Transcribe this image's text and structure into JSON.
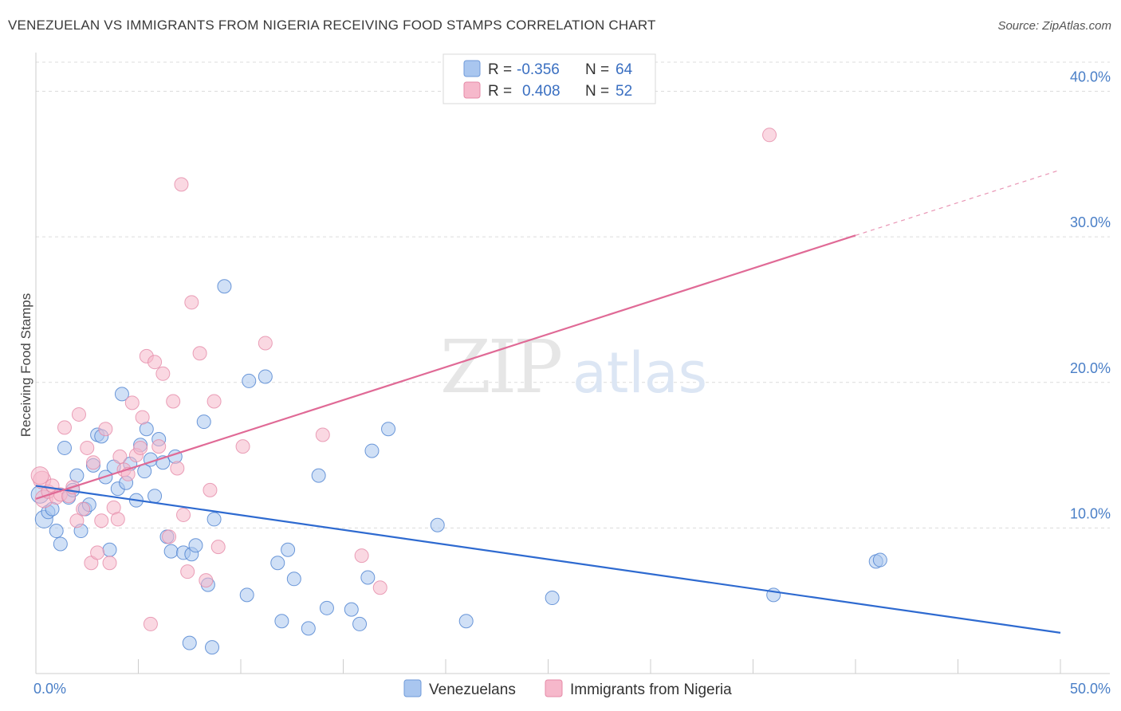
{
  "title": "VENEZUELAN VS IMMIGRANTS FROM NIGERIA RECEIVING FOOD STAMPS CORRELATION CHART",
  "source": "Source: ZipAtlas.com",
  "watermark": {
    "zip": "ZIP",
    "atlas": "atlas"
  },
  "legend": {
    "rows": [
      {
        "r_label": "R =",
        "r_value": "-0.356",
        "n_label": "N =",
        "n_value": "64",
        "color": "#a9c6ef"
      },
      {
        "r_label": "R =",
        "r_value": "0.408",
        "n_label": "N =",
        "n_value": "52",
        "color": "#f6b8cb"
      }
    ]
  },
  "bottom_legend": [
    {
      "label": "Venezuelans",
      "color": "#a9c6ef"
    },
    {
      "label": "Immigrants from Nigeria",
      "color": "#f6b8cb"
    }
  ],
  "chart_data": {
    "type": "scatter",
    "xlabel": "",
    "ylabel": "Receiving Food Stamps",
    "xlim": [
      0,
      50
    ],
    "ylim": [
      0,
      40
    ],
    "x_tick_labels": [
      {
        "value": 0,
        "label": "0.0%"
      },
      {
        "value": 50,
        "label": "50.0%"
      }
    ],
    "y_tick_labels": [
      {
        "value": 10,
        "label": "10.0%"
      },
      {
        "value": 20,
        "label": "20.0%"
      },
      {
        "value": 30,
        "label": "30.0%"
      },
      {
        "value": 40,
        "label": "40.0%"
      }
    ],
    "grid": true,
    "legend_position": "top-center",
    "series": [
      {
        "name": "Venezuelans",
        "color": "#4a7fd0",
        "fill": "#a9c6ef",
        "trend": {
          "x": [
            0,
            50
          ],
          "y": [
            12.9,
            2.8
          ],
          "color": "#2e6ad0"
        },
        "points": [
          [
            0.2,
            12.3
          ],
          [
            0.4,
            10.6
          ],
          [
            0.6,
            11.1
          ],
          [
            0.8,
            11.3
          ],
          [
            1.0,
            9.8
          ],
          [
            1.2,
            8.9
          ],
          [
            1.4,
            15.5
          ],
          [
            1.6,
            12.1
          ],
          [
            1.8,
            12.6
          ],
          [
            2.0,
            13.6
          ],
          [
            2.2,
            9.8
          ],
          [
            2.4,
            11.3
          ],
          [
            2.6,
            11.6
          ],
          [
            2.8,
            14.3
          ],
          [
            3.0,
            16.4
          ],
          [
            3.2,
            16.3
          ],
          [
            3.4,
            13.5
          ],
          [
            3.6,
            8.5
          ],
          [
            3.8,
            14.2
          ],
          [
            4.0,
            12.7
          ],
          [
            4.2,
            19.2
          ],
          [
            4.4,
            13.1
          ],
          [
            4.6,
            14.4
          ],
          [
            4.9,
            11.9
          ],
          [
            5.1,
            15.7
          ],
          [
            5.3,
            13.9
          ],
          [
            5.4,
            16.8
          ],
          [
            5.6,
            14.7
          ],
          [
            5.8,
            12.2
          ],
          [
            6.0,
            16.1
          ],
          [
            6.2,
            14.5
          ],
          [
            6.4,
            9.4
          ],
          [
            6.6,
            8.4
          ],
          [
            6.8,
            14.9
          ],
          [
            7.2,
            8.3
          ],
          [
            7.5,
            2.1
          ],
          [
            7.6,
            8.2
          ],
          [
            7.8,
            8.8
          ],
          [
            8.2,
            17.3
          ],
          [
            8.4,
            6.1
          ],
          [
            8.6,
            1.8
          ],
          [
            8.7,
            10.6
          ],
          [
            9.2,
            26.6
          ],
          [
            10.3,
            5.4
          ],
          [
            10.4,
            20.1
          ],
          [
            11.2,
            20.4
          ],
          [
            11.8,
            7.6
          ],
          [
            12.0,
            3.6
          ],
          [
            12.3,
            8.5
          ],
          [
            12.6,
            6.5
          ],
          [
            13.3,
            3.1
          ],
          [
            13.8,
            13.6
          ],
          [
            14.2,
            4.5
          ],
          [
            15.4,
            4.4
          ],
          [
            15.8,
            3.4
          ],
          [
            16.2,
            6.6
          ],
          [
            16.4,
            15.3
          ],
          [
            17.2,
            16.8
          ],
          [
            19.6,
            10.2
          ],
          [
            21.0,
            3.6
          ],
          [
            25.2,
            5.2
          ],
          [
            36.0,
            5.4
          ],
          [
            41.0,
            7.7
          ],
          [
            41.2,
            7.8
          ]
        ]
      },
      {
        "name": "Immigrants from Nigeria",
        "color": "#e58aa7",
        "fill": "#f6b8cb",
        "trend": {
          "x": [
            0,
            40
          ],
          "y": [
            12.0,
            30.1
          ],
          "dashed_to": {
            "x": 50,
            "y": 34.6
          },
          "color": "#e06a96"
        },
        "points": [
          [
            0.3,
            13.3
          ],
          [
            0.4,
            12.0
          ],
          [
            0.6,
            12.5
          ],
          [
            0.8,
            12.9
          ],
          [
            1.0,
            12.1
          ],
          [
            1.2,
            12.3
          ],
          [
            1.4,
            16.9
          ],
          [
            1.6,
            12.2
          ],
          [
            1.8,
            12.8
          ],
          [
            2.0,
            10.5
          ],
          [
            2.1,
            17.8
          ],
          [
            2.3,
            11.3
          ],
          [
            2.5,
            15.5
          ],
          [
            2.7,
            7.6
          ],
          [
            2.8,
            14.5
          ],
          [
            3.0,
            8.3
          ],
          [
            3.2,
            10.5
          ],
          [
            3.4,
            16.8
          ],
          [
            3.6,
            7.6
          ],
          [
            3.8,
            11.4
          ],
          [
            4.0,
            10.6
          ],
          [
            4.1,
            14.9
          ],
          [
            4.3,
            14.0
          ],
          [
            4.5,
            13.7
          ],
          [
            4.7,
            18.6
          ],
          [
            4.9,
            15.0
          ],
          [
            5.1,
            15.5
          ],
          [
            5.2,
            17.6
          ],
          [
            5.4,
            21.8
          ],
          [
            5.6,
            3.4
          ],
          [
            5.8,
            21.4
          ],
          [
            6.0,
            15.6
          ],
          [
            6.2,
            20.6
          ],
          [
            6.5,
            9.4
          ],
          [
            6.7,
            18.7
          ],
          [
            6.9,
            14.1
          ],
          [
            7.1,
            33.6
          ],
          [
            7.2,
            10.9
          ],
          [
            7.4,
            7.0
          ],
          [
            7.6,
            25.5
          ],
          [
            8.0,
            22.0
          ],
          [
            8.3,
            6.4
          ],
          [
            8.5,
            12.6
          ],
          [
            8.7,
            18.7
          ],
          [
            8.9,
            8.7
          ],
          [
            10.1,
            15.6
          ],
          [
            11.2,
            22.7
          ],
          [
            14.0,
            16.4
          ],
          [
            15.9,
            8.1
          ],
          [
            16.8,
            5.9
          ],
          [
            35.8,
            37.0
          ],
          [
            0.2,
            13.6
          ]
        ]
      }
    ]
  }
}
